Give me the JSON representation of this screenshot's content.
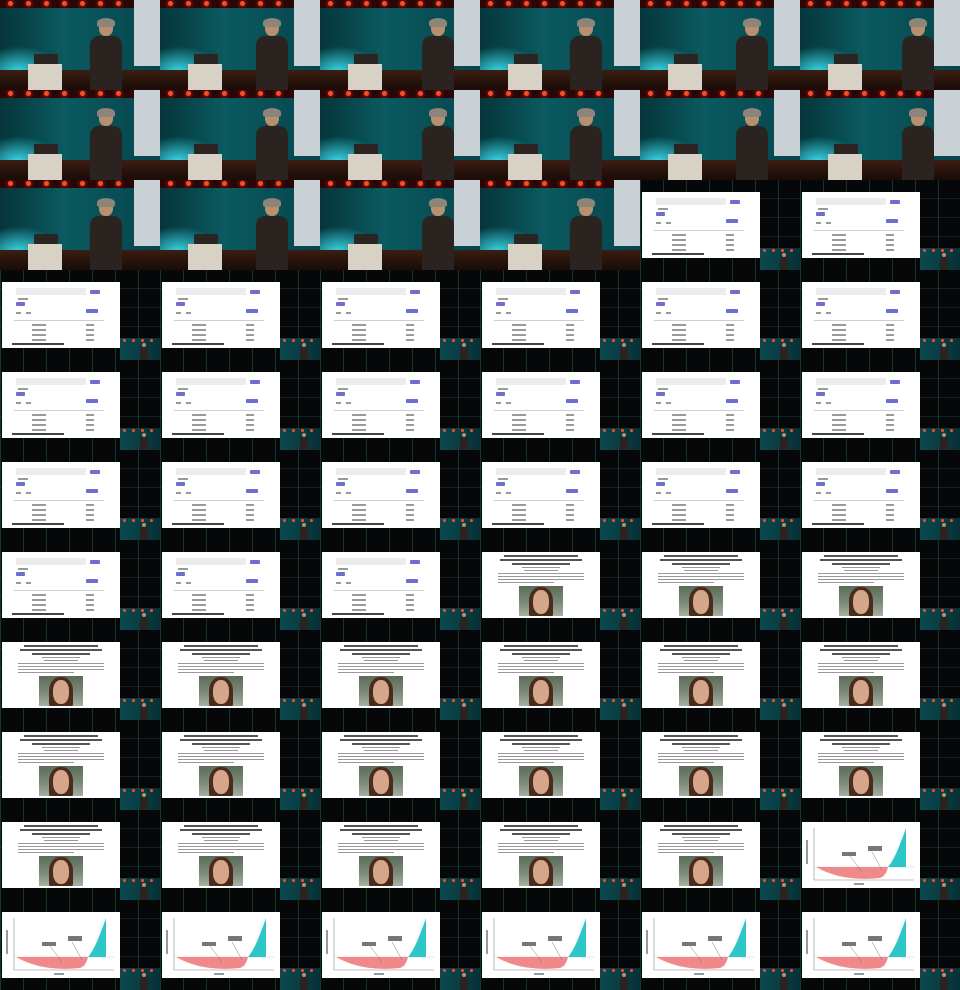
{
  "sheet": {
    "columns": 6,
    "rows": 11,
    "frames": [
      "stage",
      "stage",
      "stage",
      "stage",
      "stage",
      "stage",
      "stage",
      "stage",
      "stage",
      "stage",
      "stage",
      "stage",
      "stage",
      "stage",
      "stage",
      "stage",
      "form",
      "form",
      "form",
      "form",
      "form",
      "form",
      "form",
      "form",
      "form",
      "form",
      "form",
      "form",
      "form",
      "form",
      "form",
      "form",
      "form",
      "form",
      "form",
      "form",
      "form",
      "form",
      "form",
      "article",
      "article",
      "article",
      "article",
      "article",
      "article",
      "article",
      "article",
      "article",
      "article",
      "article",
      "article",
      "article",
      "article",
      "article",
      "article",
      "article",
      "article",
      "article",
      "article",
      "chart",
      "chart",
      "chart",
      "chart",
      "chart",
      "chart",
      "chart"
    ]
  },
  "colors": {
    "stage_bg": "#0a5a60",
    "slide_bg": "#ffffff",
    "form_button": "#6c6fd0",
    "chart_negative_fill": "#f08a8a",
    "chart_positive_fill": "#2cc6c8"
  },
  "icons": {
    "stage": "speaker-frame-icon",
    "form": "form-slide-icon",
    "article": "article-slide-icon",
    "chart": "chart-slide-icon"
  }
}
